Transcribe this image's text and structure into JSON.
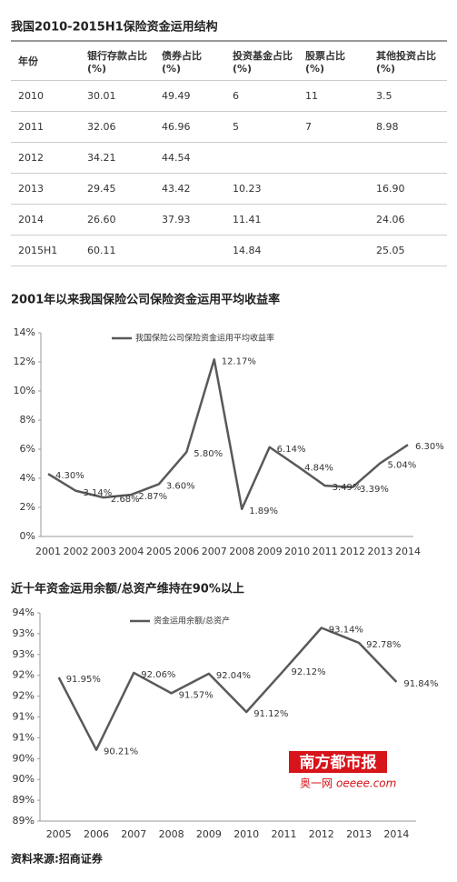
{
  "table_title": "我国2010-2015H1保险资金运用结构",
  "table": {
    "header": [
      "年份",
      "银行存款占比\n(%)",
      "债券占比\n(%)",
      "投资基金占比\n(%)",
      "股票占比\n(%)",
      "其他投资占比\n(%)"
    ],
    "rows": [
      [
        "2010",
        "30.01",
        "49.49",
        "6",
        "11",
        "3.5"
      ],
      [
        "2011",
        "32.06",
        "46.96",
        "5",
        "7",
        "8.98"
      ],
      [
        "2012",
        "34.21",
        "44.54",
        null,
        null,
        null
      ],
      [
        "2013",
        "29.45",
        "43.42",
        "10.23",
        null,
        "16.90"
      ],
      [
        "2014",
        "26.60",
        "37.93",
        "11.41",
        null,
        "24.06"
      ],
      [
        "2015H1",
        "60.11",
        null,
        "14.84",
        null,
        "25.05"
      ]
    ]
  },
  "chart_data": [
    {
      "type": "line",
      "title": "2001年以来我国保险公司保险资金运用平均收益率",
      "categories": [
        "2001",
        "2002",
        "2003",
        "2004",
        "2005",
        "2006",
        "2007",
        "2008",
        "2009",
        "2010",
        "2011",
        "2012",
        "2013",
        "2014"
      ],
      "series": [
        {
          "name": "我国保险公司保险资金运用平均收益率",
          "color": "#595959",
          "values": [
            4.3,
            3.14,
            2.68,
            2.87,
            3.6,
            5.8,
            12.17,
            1.89,
            6.14,
            4.84,
            3.49,
            3.39,
            5.04,
            6.3
          ],
          "value_labels": [
            "4.30%",
            "3.14%",
            "2.68%",
            "2.87%",
            "3.60%",
            "5.80%",
            "12.17%",
            "1.89%",
            "6.14%",
            "4.84%",
            "3.49%",
            "3.39%",
            "5.04%",
            "6.30%"
          ]
        }
      ],
      "ylim": [
        0,
        14
      ],
      "yticks": [
        {
          "value": 0,
          "label": "0%"
        },
        {
          "value": 2,
          "label": "2%"
        },
        {
          "value": 4,
          "label": "4%"
        },
        {
          "value": 6,
          "label": "6%"
        },
        {
          "value": 8,
          "label": "8%"
        },
        {
          "value": 10,
          "label": "10%"
        },
        {
          "value": 12,
          "label": "12%"
        },
        {
          "value": 14,
          "label": "14%"
        }
      ]
    },
    {
      "type": "line",
      "title": "近十年资金运用余额/总资产维持在90%以上",
      "categories": [
        "2005",
        "2006",
        "2007",
        "2008",
        "2009",
        "2010",
        "2011",
        "2012",
        "2013",
        "2014"
      ],
      "series": [
        {
          "name": "资金运用余额/总资产",
          "color": "#595959",
          "values": [
            91.95,
            90.21,
            92.06,
            91.57,
            92.04,
            91.12,
            92.12,
            93.14,
            92.78,
            91.84
          ],
          "value_labels": [
            "91.95%",
            "90.21%",
            "92.06%",
            "91.57%",
            "92.04%",
            "91.12%",
            "92.12%",
            "93.14%",
            "92.78%",
            "91.84%"
          ]
        }
      ],
      "ylim": [
        88.5,
        93.5
      ],
      "yticks": [
        {
          "value": 88.5,
          "label": "89%"
        },
        {
          "value": 89,
          "label": "89%"
        },
        {
          "value": 89.5,
          "label": "90%"
        },
        {
          "value": 90,
          "label": "90%"
        },
        {
          "value": 90.5,
          "label": "91%"
        },
        {
          "value": 91,
          "label": "91%"
        },
        {
          "value": 91.5,
          "label": "92%"
        },
        {
          "value": 92,
          "label": "92%"
        },
        {
          "value": 92.5,
          "label": "93%"
        },
        {
          "value": 93,
          "label": "93%"
        },
        {
          "value": 93.5,
          "label": "94%"
        }
      ]
    }
  ],
  "watermark": {
    "brand": "南方都市报",
    "site": "奥一网",
    "url": "oeeee.com"
  },
  "source": "资料来源:招商证券"
}
